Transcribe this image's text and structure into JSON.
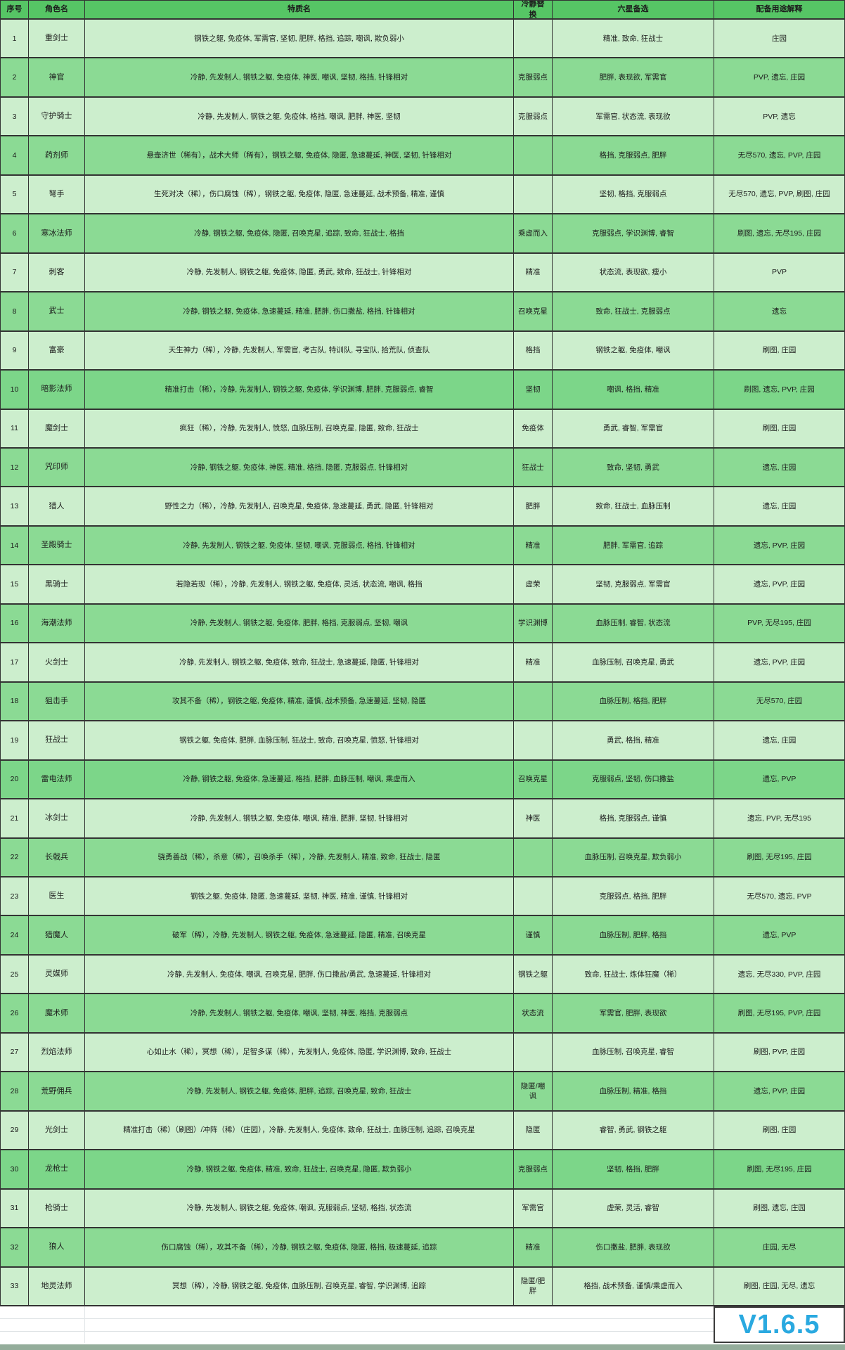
{
  "version_label": "V1.6.5",
  "colors": {
    "header-bg": "#56c565",
    "row-light": "#cceecd",
    "row-dark": "#8bda94",
    "row-highlight": "#7cd689",
    "version-blue": "#2aa9e0",
    "strip-green": "#94ad9b"
  },
  "table": {
    "headers": [
      "序号",
      "角色名",
      "特质名",
      "冷静替换",
      "六星备选",
      "配备用途解释"
    ],
    "highlighted_rows": [
      10,
      20,
      30
    ],
    "rows": [
      {
        "no": "1",
        "name": "重剑士",
        "traits": "钢铁之躯, 免疫体, 军需官, 坚韧, 肥胖, 格挡, 追踪, 嘲讽, 欺负弱小",
        "calm": "",
        "six": "精准, 致命, 狂战士",
        "use": "庄园"
      },
      {
        "no": "2",
        "name": "神官",
        "traits": "冷静, 先发制人, 钢铁之躯, 免疫体, 神医, 嘲讽, 坚韧, 格挡, 针锋相对",
        "calm": "克服弱点",
        "six": "肥胖, 表现欲, 军需官",
        "use": "PVP, 遗忘, 庄园"
      },
      {
        "no": "3",
        "name": "守护骑士",
        "traits": "冷静, 先发制人, 钢铁之躯, 免疫体, 格挡, 嘲讽, 肥胖, 神医, 坚韧",
        "calm": "克服弱点",
        "six": "军需官, 状态流, 表现欲",
        "use": "PVP, 遗忘"
      },
      {
        "no": "4",
        "name": "药剂师",
        "traits": "悬壶济世（稀有），战术大师（稀有），钢铁之躯, 免疫体, 隐匿, 急速蔓延, 神医, 坚韧, 针锋相对",
        "calm": "",
        "six": "格挡, 克服弱点, 肥胖",
        "use": "无尽570, 遗忘, PVP, 庄园"
      },
      {
        "no": "5",
        "name": "弩手",
        "traits": "生死对决（稀），伤口腐蚀（稀），钢铁之躯, 免疫体, 隐匿, 急速蔓延, 战术预备, 精准, 谨慎",
        "calm": "",
        "six": "坚韧, 格挡, 克服弱点",
        "use": "无尽570, 遗忘, PVP, 刷图, 庄园"
      },
      {
        "no": "6",
        "name": "寒冰法师",
        "traits": "冷静, 钢铁之躯, 免疫体, 隐匿, 召唤克星, 追踪, 致命, 狂战士, 格挡",
        "calm": "乘虚而入",
        "six": "克服弱点, 学识渊博, 睿智",
        "use": "刷图, 遗忘, 无尽195, 庄园"
      },
      {
        "no": "7",
        "name": "刺客",
        "traits": "冷静, 先发制人, 钢铁之躯, 免疫体, 隐匿, 勇武, 致命, 狂战士, 针锋相对",
        "calm": "精准",
        "six": "状态流, 表现欲, 瘦小",
        "use": "PVP"
      },
      {
        "no": "8",
        "name": "武士",
        "traits": "冷静, 钢铁之躯, 免疫体, 急速蔓延, 精准, 肥胖, 伤口撒盐, 格挡, 针锋相对",
        "calm": "召唤克星",
        "six": "致命, 狂战士, 克服弱点",
        "use": "遗忘"
      },
      {
        "no": "9",
        "name": "富豪",
        "traits": "天生神力（稀），冷静, 先发制人, 军需官, 考古队, 特训队, 寻宝队, 拾荒队, 侦查队",
        "calm": "格挡",
        "six": "钢铁之躯, 免疫体, 嘲讽",
        "use": "刷图, 庄园"
      },
      {
        "no": "10",
        "name": "暗影法师",
        "traits": "精准打击（稀），冷静, 先发制人, 钢铁之躯, 免疫体, 学识渊博, 肥胖, 克服弱点, 睿智",
        "calm": "坚韧",
        "six": "嘲讽, 格挡, 精准",
        "use": "刷图, 遗忘, PVP, 庄园"
      },
      {
        "no": "11",
        "name": "魔剑士",
        "traits": "疯狂（稀），冷静, 先发制人, 愤怒, 血脉压制, 召唤克星, 隐匿, 致命, 狂战士",
        "calm": "免疫体",
        "six": "勇武, 睿智, 军需官",
        "use": "刷图, 庄园"
      },
      {
        "no": "12",
        "name": "咒印师",
        "traits": "冷静, 钢铁之躯, 免疫体, 神医, 精准, 格挡, 隐匿, 克服弱点, 针锋相对",
        "calm": "狂战士",
        "six": "致命, 坚韧, 勇武",
        "use": "遗忘, 庄园"
      },
      {
        "no": "13",
        "name": "猎人",
        "traits": "野性之力（稀），冷静, 先发制人, 召唤克星, 免疫体, 急速蔓延, 勇武, 隐匿, 针锋相对",
        "calm": "肥胖",
        "six": "致命, 狂战士, 血脉压制",
        "use": "遗忘, 庄园"
      },
      {
        "no": "14",
        "name": "圣殿骑士",
        "traits": "冷静, 先发制人, 钢铁之躯, 免疫体, 坚韧, 嘲讽, 克服弱点, 格挡, 针锋相对",
        "calm": "精准",
        "six": "肥胖, 军需官, 追踪",
        "use": "遗忘, PVP, 庄园"
      },
      {
        "no": "15",
        "name": "黑骑士",
        "traits": "若隐若现（稀），冷静, 先发制人, 钢铁之躯, 免疫体, 灵活, 状态流, 嘲讽, 格挡",
        "calm": "虚荣",
        "six": "坚韧, 克服弱点, 军需官",
        "use": "遗忘, PVP, 庄园"
      },
      {
        "no": "16",
        "name": "海潮法师",
        "traits": "冷静, 先发制人, 钢铁之躯, 免疫体, 肥胖, 格挡, 克服弱点, 坚韧, 嘲讽",
        "calm": "学识渊博",
        "six": "血脉压制, 睿智, 状态流",
        "use": "PVP, 无尽195, 庄园"
      },
      {
        "no": "17",
        "name": "火剑士",
        "traits": "冷静, 先发制人, 钢铁之躯, 免疫体, 致命, 狂战士, 急速蔓延, 隐匿, 针锋相对",
        "calm": "精准",
        "six": "血脉压制, 召唤克星, 勇武",
        "use": "遗忘, PVP, 庄园"
      },
      {
        "no": "18",
        "name": "狙击手",
        "traits": "攻其不备（稀），钢铁之躯, 免疫体, 精准, 谨慎, 战术预备, 急速蔓延, 坚韧, 隐匿",
        "calm": "",
        "six": "血脉压制, 格挡, 肥胖",
        "use": "无尽570, 庄园"
      },
      {
        "no": "19",
        "name": "狂战士",
        "traits": "钢铁之躯, 免疫体, 肥胖, 血脉压制, 狂战士, 致命, 召唤克星, 愤怒, 针锋相对",
        "calm": "",
        "six": "勇武, 格挡, 精准",
        "use": "遗忘, 庄园"
      },
      {
        "no": "20",
        "name": "雷电法师",
        "traits": "冷静, 钢铁之躯, 免疫体, 急速蔓延, 格挡, 肥胖, 血脉压制, 嘲讽, 乘虚而入",
        "calm": "召唤克星",
        "six": "克服弱点, 坚韧, 伤口撒盐",
        "use": "遗忘, PVP"
      },
      {
        "no": "21",
        "name": "冰剑士",
        "traits": "冷静, 先发制人, 钢铁之躯, 免疫体, 嘲讽, 精准, 肥胖, 坚韧, 针锋相对",
        "calm": "神医",
        "six": "格挡, 克服弱点, 谨慎",
        "use": "遗忘, PVP, 无尽195"
      },
      {
        "no": "22",
        "name": "长戟兵",
        "traits": "骁勇善战（稀），杀意（稀），召唤杀手（稀），冷静, 先发制人, 精准, 致命, 狂战士, 隐匿",
        "calm": "",
        "six": "血脉压制, 召唤克星, 欺负弱小",
        "use": "刷图, 无尽195, 庄园"
      },
      {
        "no": "23",
        "name": "医生",
        "traits": "钢铁之躯, 免疫体, 隐匿, 急速蔓延, 坚韧, 神医, 精准, 谨慎, 针锋相对",
        "calm": "",
        "six": "克服弱点, 格挡, 肥胖",
        "use": "无尽570, 遗忘, PVP"
      },
      {
        "no": "24",
        "name": "猎魔人",
        "traits": "破军（稀），冷静, 先发制人, 钢铁之躯, 免疫体, 急速蔓延, 隐匿, 精准, 召唤克星",
        "calm": "谨慎",
        "six": "血脉压制, 肥胖, 格挡",
        "use": "遗忘, PVP"
      },
      {
        "no": "25",
        "name": "灵媒师",
        "traits": "冷静, 先发制人, 免疫体, 嘲讽, 召唤克星, 肥胖, 伤口撒盐/勇武, 急速蔓延, 针锋相对",
        "calm": "钢铁之躯",
        "six": "致命, 狂战士, 炼体狂魔（稀）",
        "use": "遗忘, 无尽330, PVP, 庄园"
      },
      {
        "no": "26",
        "name": "魔术师",
        "traits": "冷静, 先发制人, 钢铁之躯, 免疫体, 嘲讽, 坚韧, 神医, 格挡, 克服弱点",
        "calm": "状态流",
        "six": "军需官, 肥胖, 表现欲",
        "use": "刷图, 无尽195, PVP, 庄园"
      },
      {
        "no": "27",
        "name": "烈焰法师",
        "traits": "心如止水（稀），冥想（稀），足智多谋（稀），先发制人, 免疫体, 隐匿, 学识渊博, 致命, 狂战士",
        "calm": "",
        "six": "血脉压制, 召唤克星, 睿智",
        "use": "刷图, PVP, 庄园"
      },
      {
        "no": "28",
        "name": "荒野佣兵",
        "traits": "冷静, 先发制人, 钢铁之躯, 免疫体, 肥胖, 追踪, 召唤克星, 致命, 狂战士",
        "calm": "隐匿/嘲讽",
        "six": "血脉压制, 精准, 格挡",
        "use": "遗忘, PVP, 庄园"
      },
      {
        "no": "29",
        "name": "光剑士",
        "traits": "精准打击（稀）（刷图）/冲阵（稀）（庄园），冷静, 先发制人, 免疫体, 致命, 狂战士, 血脉压制, 追踪, 召唤克星",
        "calm": "隐匿",
        "six": "睿智, 勇武, 钢铁之躯",
        "use": "刷图, 庄园"
      },
      {
        "no": "30",
        "name": "龙枪士",
        "traits": "冷静, 钢铁之躯, 免疫体, 精准, 致命, 狂战士, 召唤克星, 隐匿, 欺负弱小",
        "calm": "克服弱点",
        "six": "坚韧, 格挡, 肥胖",
        "use": "刷图, 无尽195, 庄园"
      },
      {
        "no": "31",
        "name": "枪骑士",
        "traits": "冷静, 先发制人, 钢铁之躯, 免疫体, 嘲讽, 克服弱点, 坚韧, 格挡, 状态流",
        "calm": "军需官",
        "six": "虚荣, 灵活, 睿智",
        "use": "刷图, 遗忘, 庄园"
      },
      {
        "no": "32",
        "name": "狼人",
        "traits": "伤口腐蚀（稀），攻其不备（稀），冷静, 钢铁之躯, 免疫体, 隐匿, 格挡, 极速蔓延, 追踪",
        "calm": "精准",
        "six": "伤口撒盐, 肥胖, 表现欲",
        "use": "庄园, 无尽"
      },
      {
        "no": "33",
        "name": "地灵法师",
        "traits": "冥想（稀），冷静, 钢铁之躯, 免疫体, 血脉压制, 召唤克星, 睿智, 学识渊博, 追踪",
        "calm": "隐匿/肥胖",
        "six": "格挡, 战术预备, 谨慎/乘虚而入",
        "use": "刷图, 庄园, 无尽, 遗忘"
      }
    ]
  }
}
